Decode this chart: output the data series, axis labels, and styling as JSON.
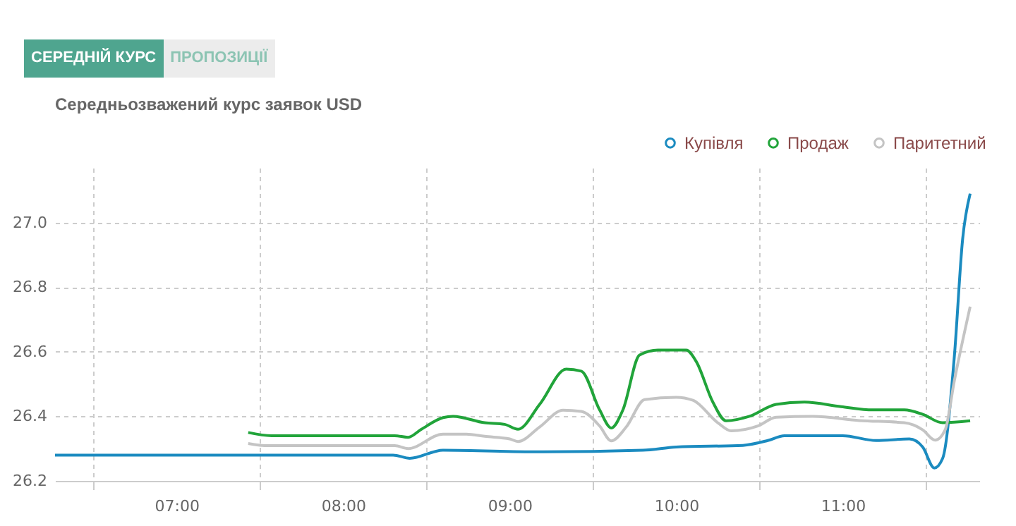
{
  "chart_data": {
    "type": "line",
    "title": "Середньозважений курс заявок USD",
    "annotations": [
      "СЕРЕДНІЙ КУРС",
      "ПРОПОЗИЦІЇ"
    ],
    "xlim": [
      6.27,
      11.82
    ],
    "ylim": [
      26.2,
      27.17
    ],
    "xticks": [
      {
        "value": 6.5,
        "label": null
      },
      {
        "value": 7,
        "label": "07:00"
      },
      {
        "value": 7.5,
        "label": null
      },
      {
        "value": 8,
        "label": "08:00"
      },
      {
        "value": 8.5,
        "label": null
      },
      {
        "value": 9,
        "label": "09:00"
      },
      {
        "value": 9.5,
        "label": null
      },
      {
        "value": 10,
        "label": "10:00"
      },
      {
        "value": 10.5,
        "label": null
      },
      {
        "value": 11,
        "label": "11:00"
      },
      {
        "value": 11.5,
        "label": null
      }
    ],
    "yticks": [
      26.2,
      26.4,
      26.6,
      26.8,
      {
        "value": 27,
        "label": "27.0"
      }
    ],
    "grid": true,
    "legend": "top right",
    "series": [
      {
        "name": "Купівля",
        "color": "#1b8bc0",
        "x": [
          6.27,
          8.3,
          8.4,
          8.6,
          9.2,
          9.8,
          10.0,
          10.4,
          10.55,
          10.65,
          11.0,
          11.2,
          11.4,
          11.48,
          11.55,
          11.6,
          11.67,
          11.72,
          11.765
        ],
        "values": [
          26.28,
          26.28,
          26.27,
          26.295,
          26.29,
          26.295,
          26.305,
          26.31,
          26.325,
          26.34,
          26.34,
          26.325,
          26.33,
          26.305,
          26.24,
          26.27,
          26.585,
          26.95,
          27.09
        ]
      },
      {
        "name": "Продаж",
        "color": "#21a43a",
        "x": [
          7.43,
          7.57,
          8.31,
          8.39,
          8.47,
          8.6,
          8.66,
          8.85,
          8.97,
          9.05,
          9.18,
          9.34,
          9.43,
          9.54,
          9.61,
          9.68,
          9.78,
          9.89,
          10.06,
          10.12,
          10.22,
          10.3,
          10.44,
          10.6,
          10.77,
          10.99,
          11.18,
          11.37,
          11.48,
          11.6,
          11.765
        ],
        "values": [
          26.35,
          26.34,
          26.34,
          26.335,
          26.36,
          26.396,
          26.4,
          26.38,
          26.375,
          26.36,
          26.437,
          26.546,
          26.54,
          26.42,
          26.364,
          26.42,
          26.59,
          26.605,
          26.605,
          26.57,
          26.444,
          26.386,
          26.4,
          26.437,
          26.444,
          26.43,
          26.42,
          26.42,
          26.406,
          26.38,
          26.386
        ]
      },
      {
        "name": "Паритетний",
        "color": "#c4c4c4",
        "x": [
          7.43,
          7.55,
          8.31,
          8.39,
          8.6,
          8.74,
          8.85,
          9.0,
          9.05,
          9.18,
          9.32,
          9.43,
          9.54,
          9.61,
          9.7,
          9.81,
          10.0,
          10.1,
          10.25,
          10.33,
          10.49,
          10.6,
          10.82,
          11.1,
          11.37,
          11.48,
          11.555,
          11.615,
          11.67,
          11.765
        ],
        "values": [
          26.316,
          26.309,
          26.309,
          26.3,
          26.345,
          26.345,
          26.338,
          26.33,
          26.322,
          26.367,
          26.419,
          26.415,
          26.37,
          26.324,
          26.367,
          26.452,
          26.459,
          26.45,
          26.38,
          26.355,
          26.37,
          26.397,
          26.4,
          26.387,
          26.38,
          26.358,
          26.326,
          26.358,
          26.51,
          26.74
        ]
      }
    ]
  }
}
